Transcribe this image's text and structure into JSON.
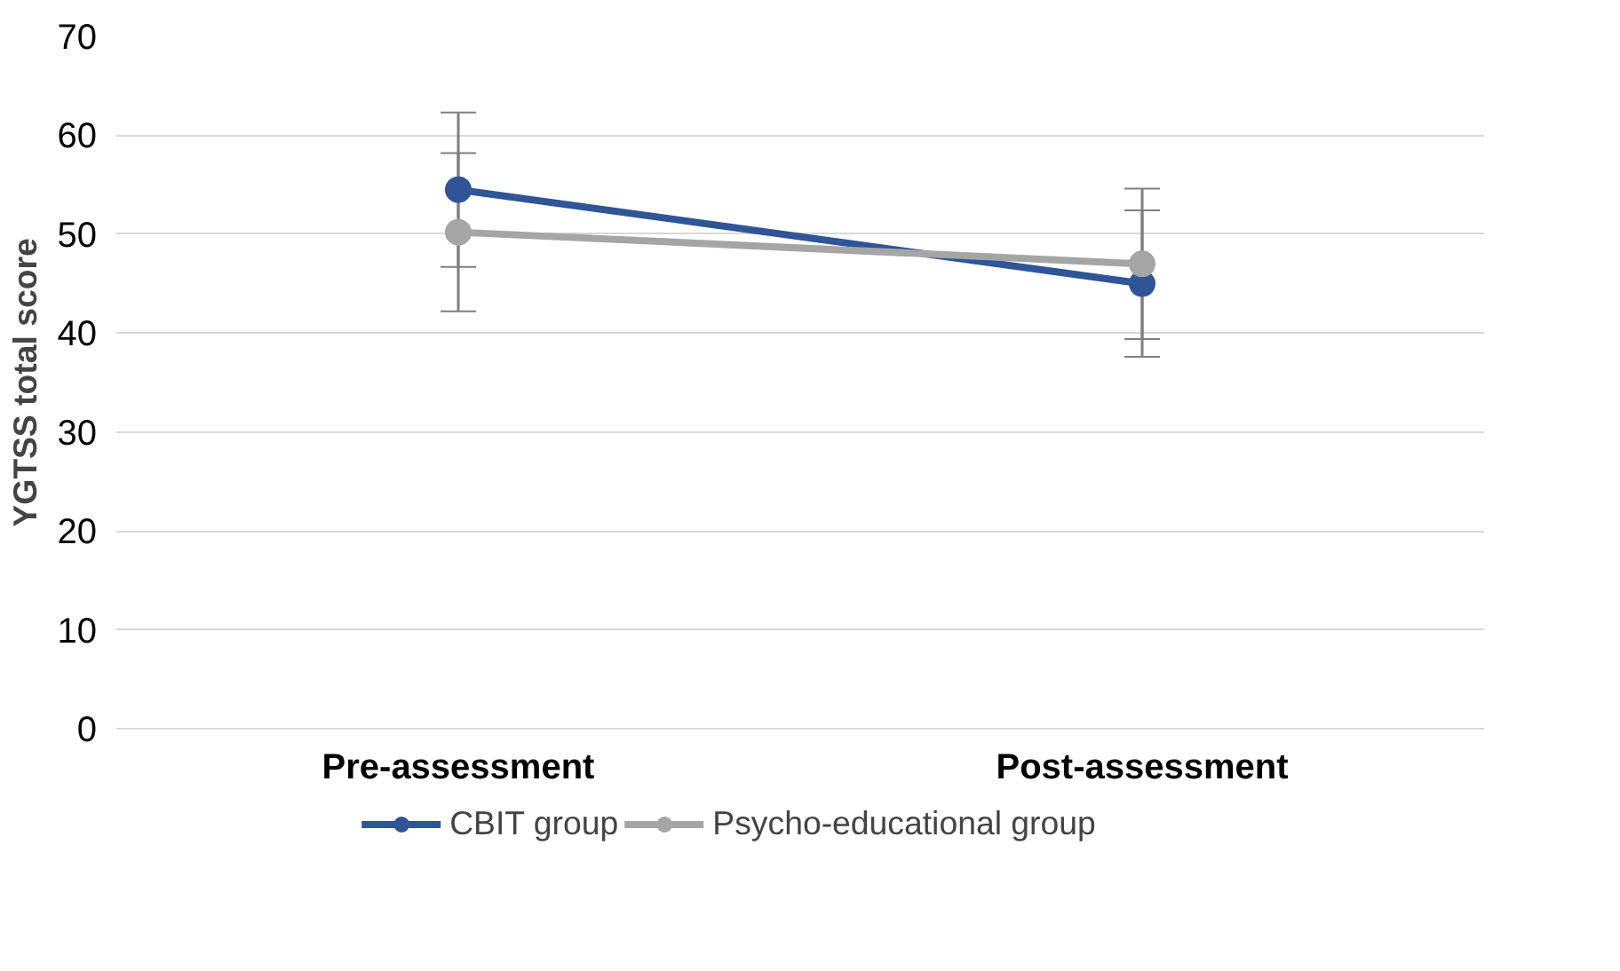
{
  "chart_data": {
    "type": "line",
    "ylabel": "YGTSS total score",
    "categories": [
      "Pre-assessment",
      "Post-assessment"
    ],
    "series": [
      {
        "name": "CBIT group",
        "color": "#2f5597",
        "values": [
          54.5,
          45.0
        ],
        "errors": [
          7.8,
          7.4
        ]
      },
      {
        "name": "Psycho-educational group",
        "color": "#a5a5a5",
        "values": [
          50.2,
          47.0
        ],
        "errors": [
          8.0,
          7.6
        ]
      }
    ],
    "ylim": [
      0,
      70
    ],
    "yticks": [
      0,
      10,
      20,
      30,
      40,
      50,
      60,
      70
    ],
    "grid": "y",
    "legend": "bottom",
    "marker": "circle",
    "line_style": "solid"
  }
}
